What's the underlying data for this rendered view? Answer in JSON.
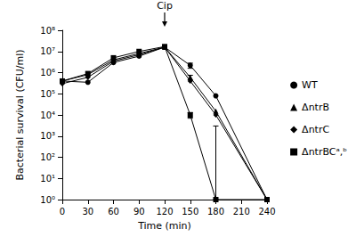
{
  "chart_data": {
    "type": "line",
    "x_label": "Time (min)",
    "y_label": "Bacterial survival (CFU/ml)",
    "log": "y",
    "grid": false,
    "legend": "right",
    "xlim": [
      0,
      240
    ],
    "xticks": [
      0,
      30,
      60,
      90,
      120,
      150,
      180,
      210,
      240
    ],
    "ylim": [
      1,
      100000000
    ],
    "yticks": [
      {
        "value": 1,
        "label": "10⁰"
      },
      {
        "value": 10,
        "label": "10¹"
      },
      {
        "value": 100,
        "label": "10²"
      },
      {
        "value": 1000,
        "label": "10³"
      },
      {
        "value": 10000,
        "label": "10⁴"
      },
      {
        "value": 100000,
        "label": "10⁵"
      },
      {
        "value": 1000000,
        "label": "10⁶"
      },
      {
        "value": 10000000,
        "label": "10⁷"
      },
      {
        "value": 100000000,
        "label": "10⁸"
      }
    ],
    "annotations": [
      {
        "text": "Cip",
        "x": 120
      }
    ],
    "x": [
      0,
      30,
      60,
      90,
      120,
      150,
      180,
      240
    ],
    "series": [
      {
        "name": "WT",
        "color": "#000000",
        "marker": "circle",
        "values": [
          400000,
          350000,
          3000000,
          6000000,
          16000000,
          2200000,
          80000,
          1
        ],
        "errors": [
          null,
          null,
          null,
          null,
          null,
          [
            1600000,
            2800000
          ],
          null,
          null
        ]
      },
      {
        "name": "ΔntrB",
        "color": "#000000",
        "marker": "triangle",
        "values": [
          400000,
          800000,
          4000000,
          8000000,
          16000000,
          600000,
          15000,
          1
        ],
        "errors": [
          null,
          null,
          null,
          null,
          null,
          [
            450000,
            750000
          ],
          null,
          null
        ]
      },
      {
        "name": "ΔntrC",
        "color": "#000000",
        "marker": "diamond",
        "values": [
          300000,
          600000,
          3500000,
          7000000,
          16000000,
          400000,
          10000,
          1
        ],
        "errors": [
          null,
          null,
          null,
          null,
          null,
          null,
          null,
          null
        ]
      },
      {
        "name": "ΔntrBCᵃ,ᵇ",
        "color": "#000000",
        "marker": "square",
        "values": [
          400000,
          900000,
          5000000,
          10000000,
          17000000,
          10000,
          1,
          1
        ],
        "errors": [
          null,
          null,
          null,
          null,
          null,
          [
            7000,
            13000
          ],
          [
            1,
            3000
          ],
          null
        ]
      }
    ]
  }
}
